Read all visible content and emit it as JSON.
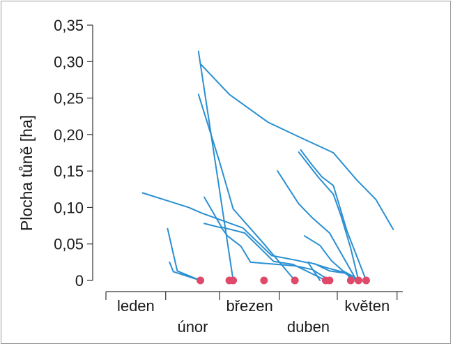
{
  "chart_data": {
    "type": "line",
    "ylabel": "Plocha tůně [ha]",
    "xlabel": "",
    "title": "",
    "ylim": [
      0,
      0.35
    ],
    "y_ticks": [
      "0,35",
      "0,30",
      "0,25",
      "0,20",
      "0,15",
      "0,10",
      "0,05",
      "0"
    ],
    "y_tick_values": [
      0.35,
      0.3,
      0.25,
      0.2,
      0.15,
      0.1,
      0.05,
      0.0
    ],
    "x_unit": "day of year",
    "x_range": [
      1,
      155
    ],
    "months": [
      {
        "label": "leden",
        "start": 1,
        "end": 31
      },
      {
        "label": "únor",
        "start": 32,
        "end": 59
      },
      {
        "label": "březen",
        "start": 60,
        "end": 90
      },
      {
        "label": "duben",
        "start": 91,
        "end": 120
      },
      {
        "label": "květen",
        "start": 121,
        "end": 151
      }
    ],
    "line_color": "#2a8fd1",
    "point_color": "#e0496a",
    "series": [
      {
        "x": [
          49,
          67
        ],
        "y": [
          0.314,
          0.0
        ]
      },
      {
        "x": [
          50,
          65,
          85,
          101,
          119,
          131,
          141,
          150
        ],
        "y": [
          0.297,
          0.255,
          0.217,
          0.197,
          0.175,
          0.138,
          0.111,
          0.07
        ]
      },
      {
        "x": [
          49,
          60,
          67,
          83,
          99
        ],
        "y": [
          0.255,
          0.162,
          0.098,
          0.05,
          0.0
        ]
      },
      {
        "x": [
          20,
          44,
          51,
          72,
          87,
          99,
          106,
          112
        ],
        "y": [
          0.12,
          0.1,
          0.092,
          0.072,
          0.034,
          0.028,
          0.024,
          0.0
        ]
      },
      {
        "x": [
          52,
          61,
          73,
          88,
          98,
          115
        ],
        "y": [
          0.114,
          0.073,
          0.065,
          0.026,
          0.022,
          0.0
        ]
      },
      {
        "x": [
          52,
          61,
          64,
          71,
          76,
          99,
          108,
          117
        ],
        "y": [
          0.078,
          0.072,
          0.061,
          0.047,
          0.025,
          0.02,
          0.015,
          0.0
        ]
      },
      {
        "x": [
          33,
          36,
          38,
          50
        ],
        "y": [
          0.071,
          0.036,
          0.013,
          0.0
        ]
      },
      {
        "x": [
          34,
          36,
          50
        ],
        "y": [
          0.025,
          0.012,
          0.0
        ]
      },
      {
        "x": [
          90,
          101,
          108,
          117,
          131
        ],
        "y": [
          0.15,
          0.105,
          0.086,
          0.065,
          0.0
        ]
      },
      {
        "x": [
          102,
          108,
          113,
          119,
          126,
          136
        ],
        "y": [
          0.179,
          0.158,
          0.142,
          0.13,
          0.068,
          0.0
        ]
      },
      {
        "x": [
          101,
          111,
          119,
          123,
          128,
          132
        ],
        "y": [
          0.176,
          0.142,
          0.118,
          0.088,
          0.044,
          0.0
        ]
      },
      {
        "x": [
          104,
          112,
          118,
          124,
          133
        ],
        "y": [
          0.061,
          0.048,
          0.027,
          0.013,
          0.0
        ]
      },
      {
        "x": [
          106,
          110,
          113,
          117,
          125,
          131
        ],
        "y": [
          0.025,
          0.022,
          0.018,
          0.013,
          0.01,
          0.0
        ]
      },
      {
        "x": [
          109,
          111,
          116,
          126,
          128
        ],
        "y": [
          0.023,
          0.021,
          0.017,
          0.01,
          0.0
        ]
      }
    ],
    "end_points": [
      {
        "x": 50,
        "y": 0.0
      },
      {
        "x": 65,
        "y": 0.0
      },
      {
        "x": 67,
        "y": 0.0
      },
      {
        "x": 83,
        "y": 0.0
      },
      {
        "x": 99,
        "y": 0.0
      },
      {
        "x": 115,
        "y": 0.0
      },
      {
        "x": 117,
        "y": 0.0
      },
      {
        "x": 128,
        "y": 0.0
      },
      {
        "x": 132,
        "y": 0.0
      },
      {
        "x": 136,
        "y": 0.0
      }
    ]
  }
}
